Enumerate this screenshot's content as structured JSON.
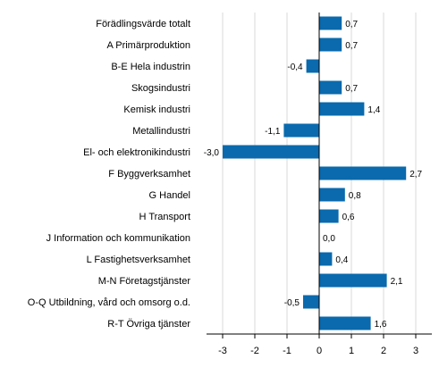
{
  "chart_data": {
    "type": "bar",
    "orientation": "horizontal",
    "categories": [
      "Förädlingsvärde totalt",
      "A Primärproduktion",
      "B-E Hela industrin",
      "Skogsindustri",
      "Kemisk industri",
      "Metallindustri",
      "El- och elektronikindustri",
      "F Byggverksamhet",
      "G Handel",
      "H Transport",
      "J Information och kommunikation",
      "L Fastighetsverksamhet",
      "M-N Företagstjänster",
      "O-Q Utbildning, vård och omsorg o.d.",
      "R-T Övriga tjänster"
    ],
    "values": [
      0.7,
      0.7,
      -0.4,
      0.7,
      1.4,
      -1.1,
      -3.0,
      2.7,
      0.8,
      0.6,
      0.0,
      0.4,
      2.1,
      -0.5,
      1.6
    ],
    "value_labels": [
      "0,7",
      "0,7",
      "-0,4",
      "0,7",
      "1,4",
      "-1,1",
      "-3,0",
      "2,7",
      "0,8",
      "0,6",
      "0,0",
      "0,4",
      "2,1",
      "-0,5",
      "1,6"
    ],
    "xlim": [
      -3.5,
      3.5
    ],
    "xticks": [
      -3,
      -2,
      -1,
      0,
      1,
      2,
      3
    ],
    "xtick_labels": [
      "-3",
      "-2",
      "-1",
      "0",
      "1",
      "2",
      "3"
    ],
    "title": "",
    "xlabel": "",
    "ylabel": "",
    "grid": "vertical",
    "legend": "none",
    "colors": {
      "bar": "#0a6aad",
      "grid": "#d9d9d9",
      "axis": "#000000"
    }
  }
}
